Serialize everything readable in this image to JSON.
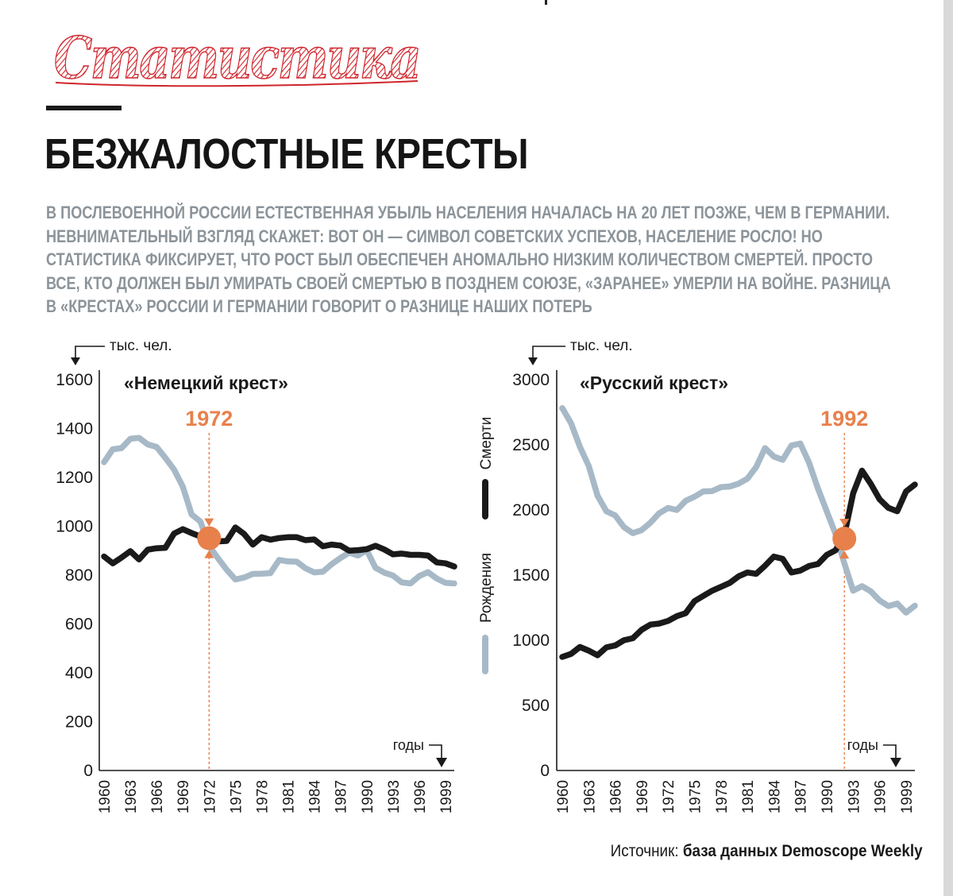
{
  "rubric": "Статистика",
  "headline": "БЕЗЖАЛОСТНЫЕ КРЕСТЫ",
  "lead": "В послевоенной России естественная убыль населения началась на 20 лет позже, чем в Германии. Невнимательный взгляд скажет: вот он — символ советских успехов, население росло! Но статистика фиксирует, что рост был обеспечен аномально низким количеством смертей. Просто все, кто должен был умирать своей смертью в позднем союзе, «заранее» умерли на войне. Разница в «крестах» России и Германии говорит о разнице наших потерь",
  "source": {
    "prefix": "Источник:",
    "name": "база данных Demoscope Weekly"
  },
  "colors": {
    "deaths": "#1a1a1a",
    "births": "#a7b9c7",
    "accent": "#e8804b",
    "brand_red": "#d0252c"
  },
  "legend": {
    "deaths": "Смерти",
    "births": "Рождения"
  },
  "chart_data": [
    {
      "type": "line",
      "title": "«Немецкий крест»",
      "ylabel": "тыс. чел.",
      "xlabel": "годы",
      "ylim": [
        0,
        1600
      ],
      "yticks": [
        0,
        200,
        400,
        600,
        800,
        1000,
        1200,
        1400,
        1600
      ],
      "xticks": [
        1960,
        1963,
        1966,
        1969,
        1972,
        1975,
        1978,
        1981,
        1984,
        1987,
        1990,
        1993,
        1996,
        1999
      ],
      "x": [
        1960,
        1961,
        1962,
        1963,
        1964,
        1965,
        1966,
        1967,
        1968,
        1969,
        1970,
        1971,
        1972,
        1973,
        1974,
        1975,
        1976,
        1977,
        1978,
        1979,
        1980,
        1981,
        1982,
        1983,
        1984,
        1985,
        1986,
        1987,
        1988,
        1989,
        1990,
        1991,
        1992,
        1993,
        1994,
        1995,
        1996,
        1997,
        1998,
        1999,
        2000
      ],
      "series": [
        {
          "name": "Смерти",
          "key": "deaths",
          "values": [
            876,
            848,
            872,
            898,
            864,
            904,
            910,
            912,
            970,
            988,
            972,
            958,
            951,
            938,
            940,
            995,
            968,
            925,
            955,
            945,
            952,
            955,
            955,
            943,
            946,
            918,
            925,
            921,
            900,
            902,
            906,
            920,
            905,
            885,
            888,
            883,
            883,
            880,
            852,
            848,
            835
          ]
        },
        {
          "name": "Рождения",
          "key": "births",
          "values": [
            1262,
            1315,
            1320,
            1358,
            1362,
            1335,
            1325,
            1280,
            1232,
            1162,
            1048,
            1020,
            920,
            870,
            822,
            782,
            790,
            805,
            806,
            808,
            862,
            856,
            855,
            828,
            811,
            814,
            845,
            870,
            892,
            880,
            902,
            830,
            810,
            798,
            770,
            766,
            796,
            812,
            786,
            768,
            766
          ]
        }
      ],
      "crossing": {
        "year": 1972,
        "value": 951,
        "label": "1972"
      }
    },
    {
      "type": "line",
      "title": "«Русский крест»",
      "ylabel": "тыс. чел.",
      "xlabel": "годы",
      "ylim": [
        0,
        3000
      ],
      "yticks": [
        0,
        500,
        1000,
        1500,
        2000,
        2500,
        3000
      ],
      "xticks": [
        1960,
        1963,
        1966,
        1969,
        1972,
        1975,
        1978,
        1981,
        1984,
        1987,
        1990,
        1993,
        1996,
        1999
      ],
      "x": [
        1960,
        1961,
        1962,
        1963,
        1964,
        1965,
        1966,
        1967,
        1968,
        1969,
        1970,
        1971,
        1972,
        1973,
        1974,
        1975,
        1976,
        1977,
        1978,
        1979,
        1980,
        1981,
        1982,
        1983,
        1984,
        1985,
        1986,
        1987,
        1988,
        1989,
        1990,
        1991,
        1992,
        1993,
        1994,
        1995,
        1996,
        1997,
        1998,
        1999,
        2000
      ],
      "series": [
        {
          "name": "Смерти",
          "key": "deaths",
          "values": [
            872,
            895,
            948,
            920,
            885,
            945,
            960,
            1000,
            1015,
            1080,
            1120,
            1128,
            1148,
            1185,
            1208,
            1300,
            1340,
            1380,
            1410,
            1440,
            1490,
            1520,
            1510,
            1572,
            1642,
            1625,
            1520,
            1535,
            1570,
            1585,
            1655,
            1690,
            1808,
            2128,
            2302,
            2200,
            2082,
            2016,
            1990,
            2142,
            2195
          ]
        },
        {
          "name": "Рождения",
          "key": "births",
          "values": [
            2782,
            2665,
            2485,
            2338,
            2110,
            1990,
            1958,
            1868,
            1822,
            1845,
            1902,
            1975,
            2015,
            2000,
            2070,
            2102,
            2142,
            2145,
            2175,
            2180,
            2202,
            2240,
            2330,
            2475,
            2410,
            2385,
            2495,
            2510,
            2362,
            2165,
            1990,
            1815,
            1590,
            1380,
            1415,
            1375,
            1305,
            1262,
            1282,
            1212,
            1265
          ]
        }
      ],
      "crossing": {
        "year": 1992,
        "value": 1780,
        "label": "1992"
      }
    }
  ]
}
